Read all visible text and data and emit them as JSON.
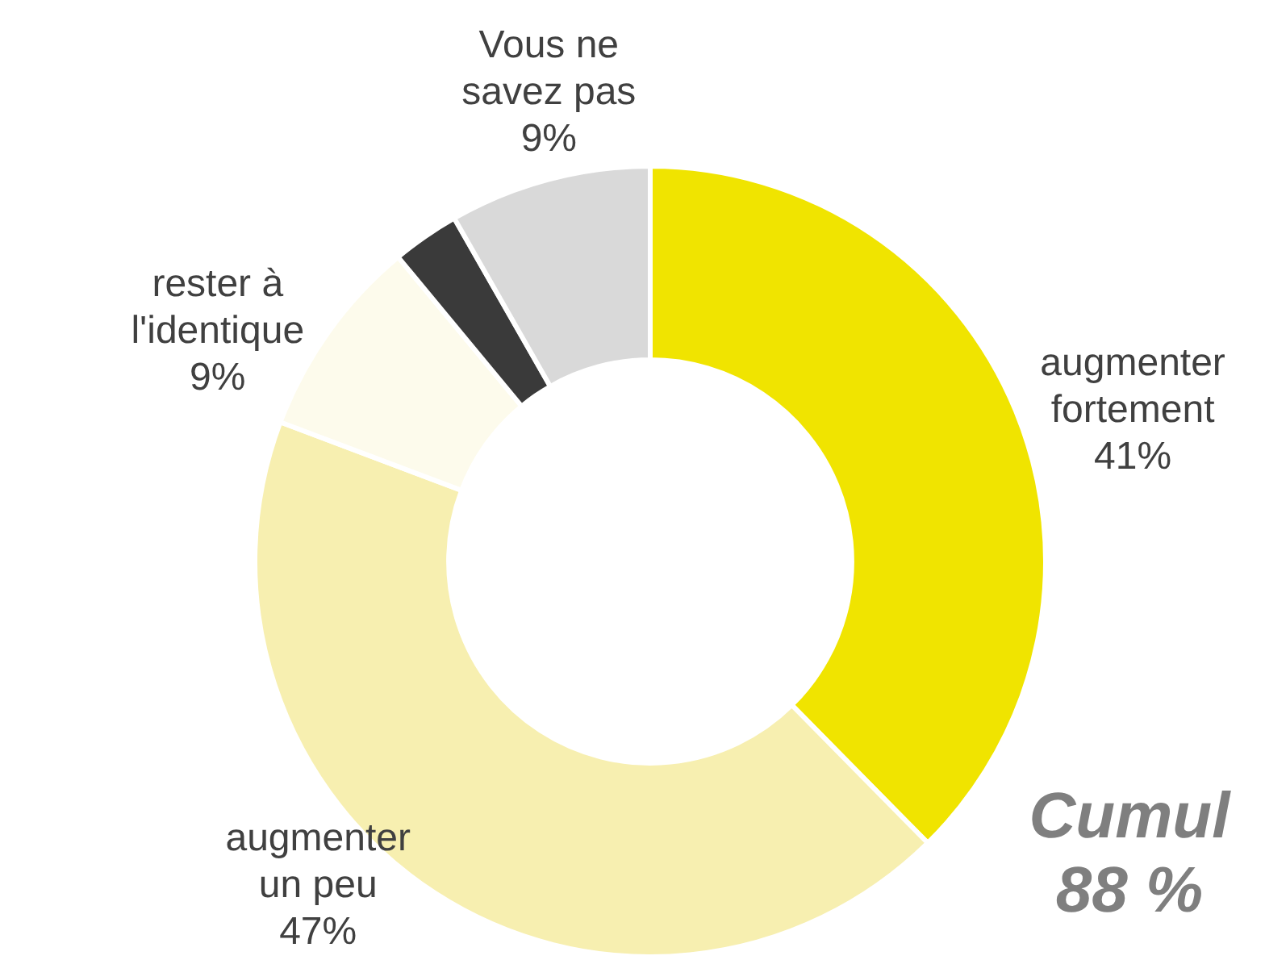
{
  "chart_data": {
    "type": "donut",
    "categories": [
      "augmenter fortement",
      "augmenter un peu",
      "rester à l'identique",
      null,
      "Vous ne savez pas"
    ],
    "values": [
      41,
      47,
      9,
      3,
      9
    ],
    "colors": [
      "#f0e400",
      "#f7efb0",
      "#fdfbec",
      "#3a3a3a",
      "#d9d9d9"
    ],
    "value_labels": [
      "41%",
      "47%",
      "9%",
      null,
      "9%"
    ],
    "legend": false,
    "annotations": [
      "Cumul 88 %"
    ]
  }
}
